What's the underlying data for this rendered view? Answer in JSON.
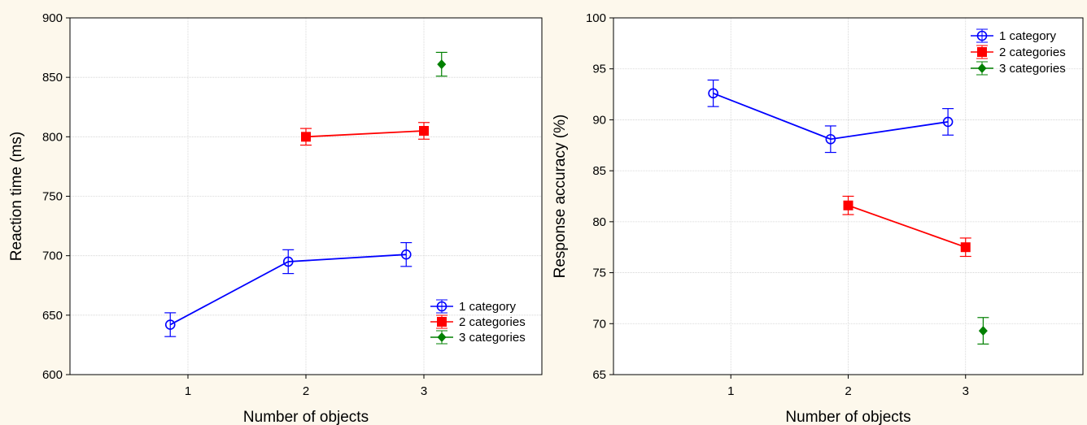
{
  "chart_data": [
    {
      "type": "line",
      "title": "",
      "xlabel": "Number of objects",
      "ylabel": "Reaction time (ms)",
      "x_ticks": [
        "1",
        "2",
        "3"
      ],
      "xlim": [
        0,
        4
      ],
      "ylim": [
        600,
        900
      ],
      "y_ticks": [
        "600",
        "650",
        "700",
        "750",
        "800",
        "850",
        "900"
      ],
      "grid": true,
      "legend_position": "bottom-right",
      "series": [
        {
          "name": "1 category",
          "color": "#0000ff",
          "marker": "open-circle",
          "x": [
            1,
            2,
            3
          ],
          "y": [
            642,
            695,
            701
          ],
          "err": [
            10,
            10,
            10
          ]
        },
        {
          "name": "2 categories",
          "color": "#ff0000",
          "marker": "filled-square",
          "x": [
            2,
            3
          ],
          "y": [
            800,
            805
          ],
          "err": [
            7,
            7
          ]
        },
        {
          "name": "3 categories",
          "color": "#008000",
          "marker": "filled-diamond",
          "x": [
            3
          ],
          "y": [
            861
          ],
          "err": [
            10
          ]
        }
      ]
    },
    {
      "type": "line",
      "title": "",
      "xlabel": "Number of objects",
      "ylabel": "Response accuracy (%)",
      "x_ticks": [
        "1",
        "2",
        "3"
      ],
      "xlim": [
        0,
        4
      ],
      "ylim": [
        65,
        100
      ],
      "y_ticks": [
        "65",
        "70",
        "75",
        "80",
        "85",
        "90",
        "95",
        "100"
      ],
      "grid": true,
      "legend_position": "top-right",
      "series": [
        {
          "name": "1 category",
          "color": "#0000ff",
          "marker": "open-circle",
          "x": [
            1,
            2,
            3
          ],
          "y": [
            92.6,
            88.1,
            89.8
          ],
          "err": [
            1.3,
            1.3,
            1.3
          ]
        },
        {
          "name": "2 categories",
          "color": "#ff0000",
          "marker": "filled-square",
          "x": [
            2,
            3
          ],
          "y": [
            81.6,
            77.5
          ],
          "err": [
            0.9,
            0.9
          ]
        },
        {
          "name": "3 categories",
          "color": "#008000",
          "marker": "filled-diamond",
          "x": [
            3
          ],
          "y": [
            69.3
          ],
          "err": [
            1.3
          ]
        }
      ]
    }
  ]
}
